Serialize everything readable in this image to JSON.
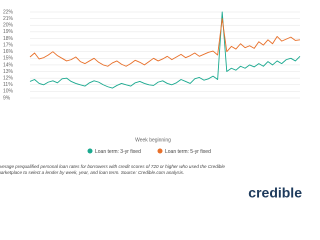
{
  "chart_data": {
    "type": "line",
    "x_label": "Week beginning",
    "caption": "Average prequalified personal loan rates for borrowers with credit scores of 720 or higher who used the Credible marketplace to select a lender by week, year, and loan term. Source: Credible.com analysis.",
    "brand": "credible",
    "categories": [
      null,
      null,
      null,
      null,
      null,
      null,
      null,
      null,
      null,
      null,
      null,
      null,
      null,
      null,
      null,
      null,
      null,
      null,
      null,
      null,
      null,
      null,
      null,
      null,
      null,
      null,
      null,
      null,
      null,
      null,
      null,
      null,
      null,
      null,
      null,
      null,
      null,
      null,
      null,
      null,
      null,
      null,
      null,
      null,
      null,
      null,
      null,
      null,
      null,
      null,
      null,
      null,
      null,
      null,
      null,
      null,
      null,
      null,
      null,
      null
    ],
    "series": [
      {
        "name": "Loan term: 3-yr fixed",
        "color": "#1aa98f",
        "values": [
          11.5,
          11.8,
          11.2,
          11.0,
          11.4,
          11.6,
          11.3,
          11.9,
          12.0,
          11.5,
          11.2,
          11.0,
          10.8,
          11.3,
          11.6,
          11.4,
          11.0,
          10.7,
          10.5,
          10.9,
          11.2,
          11.0,
          10.8,
          11.3,
          11.5,
          11.2,
          11.0,
          10.9,
          11.4,
          11.6,
          11.2,
          11.0,
          11.3,
          11.8,
          11.5,
          11.2,
          11.9,
          12.1,
          11.7,
          11.9,
          12.3,
          11.8,
          22.0,
          13.0,
          13.5,
          13.2,
          13.8,
          13.5,
          14.0,
          13.7,
          14.2,
          13.8,
          14.5,
          14.0,
          14.6,
          14.2,
          14.8,
          15.0,
          14.6,
          15.3
        ]
      },
      {
        "name": "Loan term: 5-yr fixed",
        "color": "#e8702a",
        "values": [
          15.2,
          15.8,
          14.9,
          15.1,
          15.5,
          16.0,
          15.4,
          15.0,
          14.6,
          14.8,
          15.2,
          14.5,
          14.2,
          14.6,
          15.0,
          14.4,
          14.0,
          13.8,
          14.3,
          14.6,
          14.1,
          13.8,
          14.2,
          14.7,
          14.4,
          14.0,
          14.5,
          15.0,
          14.6,
          14.9,
          15.3,
          14.8,
          15.2,
          15.6,
          15.1,
          15.4,
          15.8,
          15.3,
          15.6,
          15.9,
          16.1,
          15.5,
          21.0,
          16.0,
          16.8,
          16.4,
          17.2,
          16.6,
          16.9,
          16.5,
          17.5,
          17.0,
          17.8,
          17.2,
          18.3,
          17.6,
          17.9,
          18.2,
          17.7,
          17.8
        ]
      }
    ],
    "ylim": [
      9,
      22
    ],
    "yticks": [
      {
        "value": 9,
        "label": "9%"
      },
      {
        "value": 10,
        "label": "10%"
      },
      {
        "value": 11,
        "label": "11%"
      },
      {
        "value": 12,
        "label": "12%"
      },
      {
        "value": 13,
        "label": "13%"
      },
      {
        "value": 14,
        "label": "14%"
      },
      {
        "value": 15,
        "label": "15%"
      },
      {
        "value": 16,
        "label": "16%"
      },
      {
        "value": 17,
        "label": "17%"
      },
      {
        "value": 18,
        "label": "18%"
      },
      {
        "value": 19,
        "label": "19%"
      },
      {
        "value": 20,
        "label": "20%"
      },
      {
        "value": 21,
        "label": "21%"
      },
      {
        "value": 22,
        "label": "22%"
      }
    ],
    "grid": true
  }
}
